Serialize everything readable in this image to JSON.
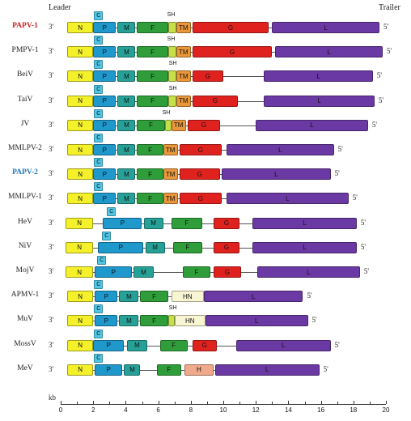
{
  "header": {
    "leader": "Leader",
    "trailer": "Trailer"
  },
  "prime3": "3'",
  "prime5": "5'",
  "c_label": "C",
  "sh_label": "SH",
  "colors": {
    "N": "#f4f02a",
    "P": "#1f98cc",
    "M": "#27a197",
    "F": "#2f9e3a",
    "SH": "#c6e04a",
    "TM": "#e9973a",
    "G": "#e0221f",
    "L": "#6b39a3",
    "HN": "#f8f6d2",
    "H": "#f0a98a",
    "C": "#4fc6e6"
  },
  "genomes": [
    {
      "name": "PAPV-1",
      "highlight": "red",
      "length": 19.6,
      "c": 2.3,
      "sh": 6.8,
      "genes": [
        [
          "N",
          0.4,
          2.0
        ],
        [
          "P",
          2.0,
          3.4
        ],
        [
          "M",
          3.5,
          4.6
        ],
        [
          "F",
          4.7,
          6.6
        ],
        [
          "SH",
          6.6,
          7.1
        ],
        [
          "TM",
          7.1,
          8.0
        ],
        [
          "G",
          8.1,
          12.8
        ],
        [
          "L",
          13.0,
          19.6
        ]
      ]
    },
    {
      "name": "PMPV-1",
      "highlight": "",
      "length": 19.8,
      "c": 2.3,
      "sh": 6.8,
      "genes": [
        [
          "N",
          0.4,
          2.0
        ],
        [
          "P",
          2.0,
          3.4
        ],
        [
          "M",
          3.5,
          4.6
        ],
        [
          "F",
          4.7,
          6.6
        ],
        [
          "SH",
          6.6,
          7.1
        ],
        [
          "TM",
          7.1,
          8.0
        ],
        [
          "G",
          8.1,
          13.0
        ],
        [
          "L",
          13.2,
          19.8
        ]
      ]
    },
    {
      "name": "BeiV",
      "highlight": "",
      "length": 19.2,
      "c": 2.3,
      "sh": 6.9,
      "genes": [
        [
          "N",
          0.4,
          2.0
        ],
        [
          "P",
          2.0,
          3.4
        ],
        [
          "M",
          3.5,
          4.6
        ],
        [
          "F",
          4.7,
          6.6
        ],
        [
          "SH",
          6.6,
          7.1
        ],
        [
          "TM",
          7.1,
          8.0
        ],
        [
          "G",
          8.1,
          10.0
        ],
        [
          "L",
          12.5,
          19.2
        ]
      ]
    },
    {
      "name": "TaiV",
      "highlight": "",
      "length": 19.3,
      "c": 2.3,
      "sh": 6.9,
      "genes": [
        [
          "N",
          0.4,
          2.0
        ],
        [
          "P",
          2.0,
          3.4
        ],
        [
          "M",
          3.5,
          4.6
        ],
        [
          "F",
          4.7,
          6.6
        ],
        [
          "SH",
          6.6,
          7.1
        ],
        [
          "TM",
          7.1,
          8.0
        ],
        [
          "G",
          8.1,
          10.9
        ],
        [
          "L",
          12.5,
          19.3
        ]
      ]
    },
    {
      "name": "JV",
      "highlight": "",
      "length": 18.9,
      "c": 2.3,
      "sh": 6.5,
      "genes": [
        [
          "N",
          0.4,
          2.0
        ],
        [
          "P",
          2.0,
          3.4
        ],
        [
          "M",
          3.5,
          4.6
        ],
        [
          "F",
          4.7,
          6.4
        ],
        [
          "SH",
          6.4,
          6.8
        ],
        [
          "TM",
          6.8,
          7.7
        ],
        [
          "G",
          7.8,
          9.8
        ],
        [
          "L",
          12.0,
          18.9
        ]
      ]
    },
    {
      "name": "MMLPV-2",
      "highlight": "",
      "length": 16.8,
      "c": 2.3,
      "sh": null,
      "genes": [
        [
          "N",
          0.4,
          2.0
        ],
        [
          "P",
          2.0,
          3.4
        ],
        [
          "M",
          3.5,
          4.6
        ],
        [
          "F",
          4.7,
          6.3
        ],
        [
          "TM",
          6.3,
          7.2
        ],
        [
          "G",
          7.3,
          9.9
        ],
        [
          "L",
          10.2,
          16.8
        ]
      ]
    },
    {
      "name": "PAPV-2",
      "highlight": "blue",
      "length": 16.6,
      "c": 2.3,
      "sh": null,
      "genes": [
        [
          "N",
          0.4,
          2.0
        ],
        [
          "P",
          2.0,
          3.4
        ],
        [
          "M",
          3.5,
          4.6
        ],
        [
          "F",
          4.7,
          6.3
        ],
        [
          "TM",
          6.3,
          7.2
        ],
        [
          "G",
          7.3,
          9.8
        ],
        [
          "L",
          9.9,
          16.6
        ]
      ]
    },
    {
      "name": "MMLPV-1",
      "highlight": "",
      "length": 17.7,
      "c": 2.3,
      "sh": null,
      "genes": [
        [
          "N",
          0.4,
          2.0
        ],
        [
          "P",
          2.0,
          3.4
        ],
        [
          "M",
          3.5,
          4.6
        ],
        [
          "F",
          4.7,
          6.3
        ],
        [
          "TM",
          6.3,
          7.2
        ],
        [
          "G",
          7.3,
          9.9
        ],
        [
          "L",
          10.2,
          17.7
        ]
      ]
    },
    {
      "name": "HeV",
      "highlight": "",
      "length": 18.2,
      "c": 3.1,
      "sh": null,
      "genes": [
        [
          "N",
          0.3,
          2.0
        ],
        [
          "P",
          2.6,
          5.0
        ],
        [
          "M",
          5.1,
          6.3
        ],
        [
          "F",
          6.8,
          8.7
        ],
        [
          "G",
          9.4,
          11.0
        ],
        [
          "L",
          11.8,
          18.2
        ]
      ]
    },
    {
      "name": "NiV",
      "highlight": "",
      "length": 18.2,
      "c": 2.8,
      "sh": null,
      "genes": [
        [
          "N",
          0.3,
          2.0
        ],
        [
          "P",
          2.3,
          5.1
        ],
        [
          "M",
          5.2,
          6.4
        ],
        [
          "F",
          6.9,
          8.7
        ],
        [
          "G",
          9.4,
          11.0
        ],
        [
          "L",
          11.8,
          18.2
        ]
      ]
    },
    {
      "name": "MojV",
      "highlight": "",
      "length": 18.4,
      "c": 2.5,
      "sh": null,
      "genes": [
        [
          "N",
          0.3,
          2.0
        ],
        [
          "P",
          2.1,
          4.4
        ],
        [
          "M",
          4.5,
          5.7
        ],
        [
          "F",
          7.5,
          9.2
        ],
        [
          "G",
          9.4,
          11.1
        ],
        [
          "L",
          12.1,
          18.4
        ]
      ]
    },
    {
      "name": "APMV-1",
      "highlight": "",
      "length": 14.9,
      "c": 2.3,
      "sh": null,
      "genes": [
        [
          "N",
          0.4,
          2.0
        ],
        [
          "P",
          2.1,
          3.5
        ],
        [
          "M",
          3.6,
          4.8
        ],
        [
          "F",
          4.9,
          6.6
        ],
        [
          "HN",
          6.8,
          8.8
        ],
        [
          "L",
          8.8,
          14.9
        ]
      ]
    },
    {
      "name": "MuV",
      "highlight": "",
      "length": 15.2,
      "c": 2.3,
      "sh": 6.9,
      "genes": [
        [
          "N",
          0.4,
          2.0
        ],
        [
          "P",
          2.1,
          3.5
        ],
        [
          "M",
          3.6,
          4.8
        ],
        [
          "F",
          4.9,
          6.6
        ],
        [
          "SH",
          6.6,
          7.0
        ],
        [
          "HN",
          7.0,
          8.9
        ],
        [
          "L",
          8.9,
          15.2
        ]
      ]
    },
    {
      "name": "MossV",
      "highlight": "",
      "length": 16.6,
      "c": 2.3,
      "sh": null,
      "genes": [
        [
          "N",
          0.4,
          2.0
        ],
        [
          "P",
          2.0,
          3.9
        ],
        [
          "M",
          4.1,
          5.3
        ],
        [
          "F",
          6.1,
          7.8
        ],
        [
          "G",
          8.1,
          9.6
        ],
        [
          "L",
          10.8,
          16.6
        ]
      ]
    },
    {
      "name": "MeV",
      "highlight": "",
      "length": 15.9,
      "c": 2.3,
      "sh": null,
      "genes": [
        [
          "N",
          0.4,
          2.0
        ],
        [
          "P",
          2.1,
          3.8
        ],
        [
          "M",
          3.9,
          4.9
        ],
        [
          "F",
          5.9,
          7.4
        ],
        [
          "H",
          7.6,
          9.4
        ],
        [
          "L",
          9.5,
          15.9
        ]
      ]
    }
  ],
  "axis": {
    "unit": "kb",
    "ticks": [
      0,
      2,
      4,
      6,
      8,
      10,
      12,
      14,
      16,
      18,
      20
    ],
    "max": 20
  }
}
